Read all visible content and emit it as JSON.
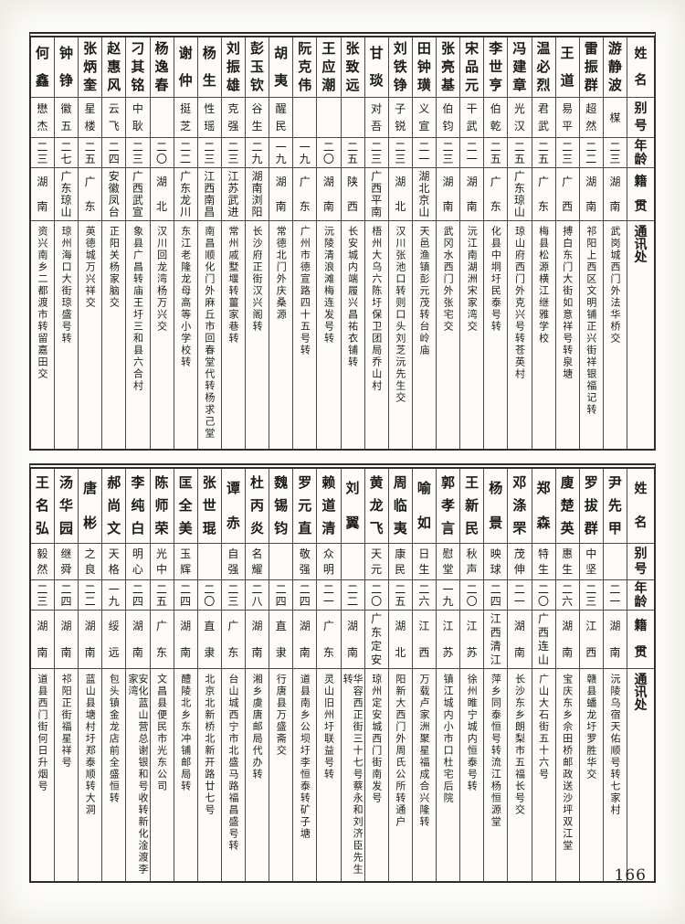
{
  "page": {
    "number": "166"
  },
  "headers": {
    "name": "姓名",
    "alias": "别号",
    "age": "年龄",
    "native": "籍贯",
    "address": "通讯处"
  },
  "table_top": {
    "people": [
      {
        "name": "游静波",
        "alias": "楳",
        "age": "二三",
        "native": "湖南",
        "address": "武岗城西门外法华桥交"
      },
      {
        "name": "雷振群",
        "alias": "超然",
        "age": "二二",
        "native": "湖南",
        "address": "祁阳上西区文明铺正兴街祥银福记转"
      },
      {
        "name": "王道",
        "alias": "易平",
        "age": "二三",
        "native": "广西",
        "address": "搏白东门大街如意祥号转泉塘"
      },
      {
        "name": "温必烈",
        "alias": "君武",
        "age": "二五",
        "native": "广东",
        "address": "梅县松源横江继雅学校"
      },
      {
        "name": "冯建章",
        "alias": "光汉",
        "age": "二五",
        "native": "广东琼山",
        "address": "琼山府西门外克兴号转苍英村"
      },
      {
        "name": "李世亨",
        "alias": "伯乾",
        "age": "二五",
        "native": "广东",
        "address": "化县中垌圩民泰号转"
      },
      {
        "name": "宋品元",
        "alias": "干武",
        "age": "二一",
        "native": "湖南",
        "address": "沅江南湖洲宋家湾交"
      },
      {
        "name": "张亮基",
        "alias": "伯钧",
        "age": "二三",
        "native": "湖南",
        "address": "武冈水西门外张宅交"
      },
      {
        "name": "田钟璜",
        "alias": "义宣",
        "age": "二一",
        "native": "湖北京山",
        "address": "天邑渔镇彭元茂转台岭庙"
      },
      {
        "name": "刘铁铮",
        "alias": "子锐",
        "age": "二三",
        "native": "湖北",
        "address": "汉川张池口转则口头刘芝沅先生交"
      },
      {
        "name": "甘琰",
        "alias": "对吾",
        "age": "二三",
        "native": "广西平南",
        "address": "梧州大乌六陈圩保卫团局乔山村"
      },
      {
        "name": "张致远",
        "alias": "",
        "age": "二五",
        "native": "陕西",
        "address": "长安城内端履兴昌祐衣铺转"
      },
      {
        "name": "王应潮",
        "alias": "",
        "age": "二〇",
        "native": "湖南",
        "address": "沅陵清浪滩梅连发号转"
      },
      {
        "name": "阮克伟",
        "alias": "",
        "age": "一九",
        "native": "广东",
        "address": "广州市德宣路四十五号转"
      },
      {
        "name": "胡夷",
        "alias": "醒民",
        "age": "一九",
        "native": "湖南",
        "address": "常德北门外庆桑源"
      },
      {
        "name": "彭玉钦",
        "alias": "谷生",
        "age": "二九",
        "native": "湖南浏阳",
        "address": "长沙府正街汉兴阁转"
      },
      {
        "name": "刘振雄",
        "alias": "克强",
        "age": "二三",
        "native": "江苏武进",
        "address": "常州戚墅堰转薑家巷转"
      },
      {
        "name": "杨生",
        "alias": "性瑶",
        "age": "二三",
        "native": "江西南昌",
        "address": "南昌顺化门外麻丘市回春堂代转杨求己堂"
      },
      {
        "name": "谢仲",
        "alias": "挺芝",
        "age": "二二",
        "native": "广东龙川",
        "address": "东江老隆龙母高等小学校转"
      },
      {
        "name": "杨逸春",
        "alias": "",
        "age": "二〇",
        "native": "湖北",
        "address": "汉川回龙湾杨万兴交"
      },
      {
        "name": "刁其铭",
        "alias": "中耿",
        "age": "二三",
        "native": "广西武宣",
        "address": "象县广昌转庙王圩三和县六合村"
      },
      {
        "name": "赵惠风",
        "alias": "云飞",
        "age": "二四",
        "native": "安徽凤台",
        "address": "正阳关杨家脑交"
      },
      {
        "name": "张炳奎",
        "alias": "星楼",
        "age": "二五",
        "native": "广东",
        "address": "英德城万兴祥交"
      },
      {
        "name": "钟铮",
        "alias": "徽五",
        "age": "二七",
        "native": "广东琼山",
        "address": "琼州海口大街琼盛号转"
      },
      {
        "name": "何鑫",
        "alias": "懋杰",
        "age": "二三",
        "native": "湖南",
        "address": "资兴南乡二都渡市转留嘉田交"
      }
    ]
  },
  "table_bottom": {
    "people": [
      {
        "name": "尹先甲",
        "alias": "",
        "age": "二一",
        "native": "湖南",
        "address": "沅陵乌宿天佑顺号转七家村"
      },
      {
        "name": "罗拔群",
        "alias": "中坚",
        "age": "二三",
        "native": "江西",
        "address": "赣县蟠龙圩罗胜华交"
      },
      {
        "name": "廋楚英",
        "alias": "惠生",
        "age": "二六",
        "native": "湖南",
        "address": "宝庆东乡佘田桥邮政送沙坪双江堂"
      },
      {
        "name": "郑森",
        "alias": "特生",
        "age": "二〇",
        "native": "广西连山",
        "address": "广山大石街五十六号"
      },
      {
        "name": "邓涤罘",
        "alias": "茂伸",
        "age": "二一",
        "native": "湖南",
        "address": "长沙东乡朗梨市五福长号交"
      },
      {
        "name": "杨景",
        "alias": "映球",
        "age": "二四",
        "native": "江西清江",
        "address": "萍乡同泰恒号转流江杨恒源堂"
      },
      {
        "name": "王新民",
        "alias": "秋声",
        "age": "二〇",
        "native": "江苏",
        "address": "徐州睢宁城内恒泰号转"
      },
      {
        "name": "郭孝言",
        "alias": "慰堂",
        "age": "一九",
        "native": "江苏",
        "address": "镇江城内小市口杜宅后院"
      },
      {
        "name": "喻如",
        "alias": "日生",
        "age": "二六",
        "native": "江西",
        "address": "万载卢家洲聚星福成合兴隆转"
      },
      {
        "name": "周临夷",
        "alias": "康民",
        "age": "二五",
        "native": "湖北",
        "address": "阳新大西门外周氏公所转通户"
      },
      {
        "name": "黄龙飞",
        "alias": "天元",
        "age": "二〇",
        "native": "广东定安",
        "address": "琼州定安城西门街南发号"
      },
      {
        "name": "刘翼",
        "alias": "",
        "age": "二二",
        "native": "湖南",
        "address": "华容西正街三十七号蔡永和刘济臣先生转"
      },
      {
        "name": "赖道清",
        "alias": "众明",
        "age": "二一",
        "native": "广东",
        "address": "灵山旧州圩联益号转"
      },
      {
        "name": "罗元直",
        "alias": "敬强",
        "age": "二四",
        "native": "湖南",
        "address": "道县南乡公坝圩李恒泰转矿子塘"
      },
      {
        "name": "魏锡钧",
        "alias": "",
        "age": "二四",
        "native": "直隶",
        "address": "行唐县万盛斋交"
      },
      {
        "name": "杜丙炎",
        "alias": "名耀",
        "age": "二八",
        "native": "湖南",
        "address": "湘乡虞唐邮局代办转"
      },
      {
        "name": "谭赤",
        "alias": "自强",
        "age": "二三",
        "native": "广东",
        "address": "台山城西宁市北盛马路福昌盛号转"
      },
      {
        "name": "张世琨",
        "alias": "",
        "age": "二〇",
        "native": "直隶",
        "address": "北京北新桥北新开路廿七号"
      },
      {
        "name": "匡全美",
        "alias": "玉辉",
        "age": "二四",
        "native": "湖南",
        "address": "醴陵北乡东冲铺邮局转"
      },
      {
        "name": "陈师荣",
        "alias": "光中",
        "age": "二五",
        "native": "广东",
        "address": "文昌县便民市光东公司"
      },
      {
        "name": "李纯白",
        "alias": "明心",
        "age": "二四",
        "native": "湖南",
        "address": "安化蓝山营总谢银和号收转新化淦渡李家湾"
      },
      {
        "name": "郝尚文",
        "alias": "天格",
        "age": "一九",
        "native": "绥远",
        "address": "包头镇金龙店前全盛恒转"
      },
      {
        "name": "唐彬",
        "alias": "之良",
        "age": "二二",
        "native": "湖南",
        "address": "蓝山县塘村圩郑泰顺转大洞"
      },
      {
        "name": "汤华园",
        "alias": "继舜",
        "age": "二四",
        "native": "湖南",
        "address": "祁阳正街福星祥号"
      },
      {
        "name": "王名弘",
        "alias": "毅然",
        "age": "二三",
        "native": "湖南",
        "address": "道县西门街何日升烟号"
      }
    ]
  }
}
